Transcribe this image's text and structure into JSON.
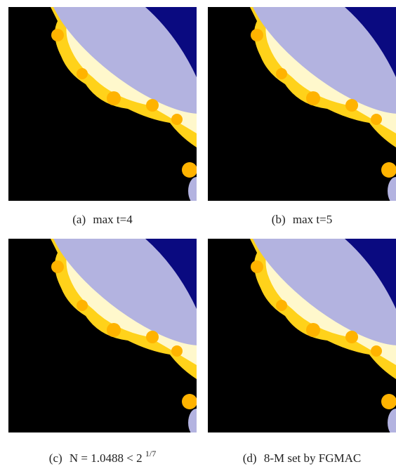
{
  "figure": {
    "panels": [
      {
        "label": "(a)",
        "caption": "max t=4"
      },
      {
        "label": "(b)",
        "caption": "max t=5"
      },
      {
        "label": "(c)",
        "caption": "N = 1.0488 < 2",
        "caption_superscript": "1/7"
      },
      {
        "label": "(d)",
        "caption": "8-M set by FGMAC"
      }
    ]
  }
}
